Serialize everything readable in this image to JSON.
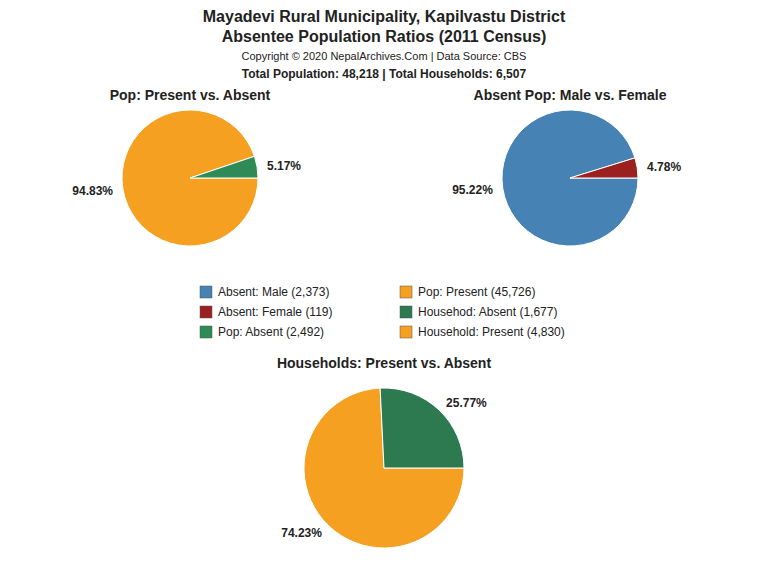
{
  "title": "Mayadevi Rural Municipality, Kapilvastu District",
  "subtitle": "Absentee Population Ratios (2011 Census)",
  "annotations": [
    "Copyright © 2020 NepalArchives.Com | Data Source: CBS",
    "Total Population: 48,218 | Total Households: 6,507"
  ],
  "chart_data": [
    {
      "type": "pie",
      "title": "Pop: Present vs. Absent",
      "categories": [
        "Pop: Present (45,726)",
        "Pop: Absent (2,492)"
      ],
      "values": [
        94.83,
        5.17
      ],
      "value_labels": [
        "94.83%",
        "5.17%"
      ],
      "colors": [
        "#F5A020",
        "#2E8B57"
      ],
      "data_labels": true
    },
    {
      "type": "pie",
      "title": "Absent Pop: Male vs. Female",
      "categories": [
        "Absent: Male (2,373)",
        "Absent: Female (119)"
      ],
      "values": [
        95.22,
        4.78
      ],
      "value_labels": [
        "95.22%",
        "4.78%"
      ],
      "colors": [
        "#4682B4",
        "#9B2020"
      ],
      "data_labels": true
    },
    {
      "type": "pie",
      "title": "Households: Present vs. Absent",
      "categories": [
        "Household: Present (4,830)",
        "Househod: Absent (1,677)"
      ],
      "values": [
        74.23,
        25.77
      ],
      "value_labels": [
        "74.23%",
        "25.77%"
      ],
      "colors": [
        "#F5A020",
        "#2E7A50"
      ],
      "data_labels": true
    }
  ]
}
